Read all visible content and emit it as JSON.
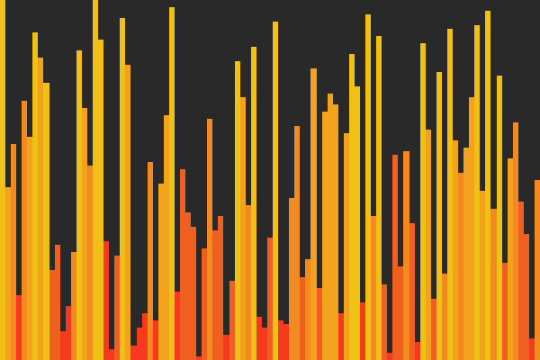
{
  "colors": {
    "background": "#292929",
    "palette": [
      "#F53A1F",
      "#EF6020",
      "#F28A20",
      "#F3A21E",
      "#F0C015"
    ]
  },
  "bars": [
    {
      "value": 1.0,
      "color": 4
    },
    {
      "value": 0.48,
      "color": 3
    },
    {
      "value": 0.6,
      "color": 2
    },
    {
      "value": 0.18,
      "color": 0
    },
    {
      "value": 0.72,
      "color": 2
    },
    {
      "value": 0.62,
      "color": 3
    },
    {
      "value": 0.91,
      "color": 4
    },
    {
      "value": 0.84,
      "color": 3
    },
    {
      "value": 0.77,
      "color": 4
    },
    {
      "value": 0.25,
      "color": 1
    },
    {
      "value": 0.32,
      "color": 1
    },
    {
      "value": 0.08,
      "color": 0
    },
    {
      "value": 0.15,
      "color": 0
    },
    {
      "value": 0.3,
      "color": 2
    },
    {
      "value": 0.86,
      "color": 4
    },
    {
      "value": 0.7,
      "color": 3
    },
    {
      "value": 0.54,
      "color": 2
    },
    {
      "value": 1.0,
      "color": 4
    },
    {
      "value": 0.89,
      "color": 4
    },
    {
      "value": 0.33,
      "color": 0
    },
    {
      "value": 0.03,
      "color": 0
    },
    {
      "value": 0.29,
      "color": 1
    },
    {
      "value": 0.95,
      "color": 4
    },
    {
      "value": 0.82,
      "color": 3
    },
    {
      "value": 0.04,
      "color": 0
    },
    {
      "value": 0.09,
      "color": 0
    },
    {
      "value": 0.13,
      "color": 0
    },
    {
      "value": 0.55,
      "color": 2
    },
    {
      "value": 0.11,
      "color": 0
    },
    {
      "value": 0.49,
      "color": 3
    },
    {
      "value": 0.68,
      "color": 3
    },
    {
      "value": 0.98,
      "color": 4
    },
    {
      "value": 0.19,
      "color": 0
    },
    {
      "value": 0.53,
      "color": 1
    },
    {
      "value": 0.41,
      "color": 1
    },
    {
      "value": 0.37,
      "color": 1
    },
    {
      "value": 0.01,
      "color": 0
    },
    {
      "value": 0.31,
      "color": 1
    },
    {
      "value": 0.67,
      "color": 2
    },
    {
      "value": 0.36,
      "color": 1
    },
    {
      "value": 0.4,
      "color": 1
    },
    {
      "value": 0.07,
      "color": 0
    },
    {
      "value": 0.22,
      "color": 1
    },
    {
      "value": 0.83,
      "color": 4
    },
    {
      "value": 0.73,
      "color": 3
    },
    {
      "value": 0.43,
      "color": 2
    },
    {
      "value": 0.87,
      "color": 4
    },
    {
      "value": 0.12,
      "color": 0
    },
    {
      "value": 0.09,
      "color": 0
    },
    {
      "value": 0.34,
      "color": 1
    },
    {
      "value": 0.94,
      "color": 4
    },
    {
      "value": 0.11,
      "color": 0
    },
    {
      "value": 0.1,
      "color": 0
    },
    {
      "value": 0.45,
      "color": 2
    },
    {
      "value": 0.65,
      "color": 2
    },
    {
      "value": 0.23,
      "color": 1
    },
    {
      "value": 0.28,
      "color": 2
    },
    {
      "value": 0.81,
      "color": 3
    },
    {
      "value": 0.2,
      "color": 1
    },
    {
      "value": 0.69,
      "color": 3
    },
    {
      "value": 0.74,
      "color": 3
    },
    {
      "value": 0.71,
      "color": 3
    },
    {
      "value": 0.13,
      "color": 0
    },
    {
      "value": 0.63,
      "color": 3
    },
    {
      "value": 0.85,
      "color": 4
    },
    {
      "value": 0.76,
      "color": 4
    },
    {
      "value": 0.16,
      "color": 0
    },
    {
      "value": 0.96,
      "color": 4
    },
    {
      "value": 0.4,
      "color": 2
    },
    {
      "value": 0.9,
      "color": 4
    },
    {
      "value": 0.21,
      "color": 1
    },
    {
      "value": 0.02,
      "color": 0
    },
    {
      "value": 0.57,
      "color": 1
    },
    {
      "value": 0.26,
      "color": 1
    },
    {
      "value": 0.58,
      "color": 2
    },
    {
      "value": 0.38,
      "color": 1
    },
    {
      "value": 0.05,
      "color": 0
    },
    {
      "value": 0.88,
      "color": 4
    },
    {
      "value": 0.64,
      "color": 3
    },
    {
      "value": 0.17,
      "color": 1
    },
    {
      "value": 0.8,
      "color": 4
    },
    {
      "value": 0.24,
      "color": 2
    },
    {
      "value": 0.92,
      "color": 4
    },
    {
      "value": 0.61,
      "color": 3
    },
    {
      "value": 0.52,
      "color": 2
    },
    {
      "value": 0.59,
      "color": 3
    },
    {
      "value": 0.73,
      "color": 3
    },
    {
      "value": 0.93,
      "color": 4
    },
    {
      "value": 0.47,
      "color": 3
    },
    {
      "value": 0.97,
      "color": 4
    },
    {
      "value": 0.42,
      "color": 2
    },
    {
      "value": 0.79,
      "color": 4
    },
    {
      "value": 0.27,
      "color": 1
    },
    {
      "value": 0.56,
      "color": 3
    },
    {
      "value": 0.66,
      "color": 2
    },
    {
      "value": 0.44,
      "color": 1
    },
    {
      "value": 0.35,
      "color": 1
    },
    {
      "value": 0.06,
      "color": 0
    },
    {
      "value": 0.5,
      "color": 2
    }
  ]
}
